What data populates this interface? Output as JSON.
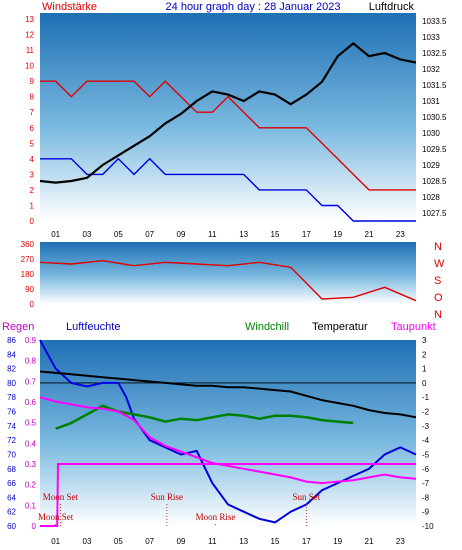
{
  "chart_data": [
    {
      "type": "line",
      "title": "24 hour graph day : 28 Januar 2023",
      "left_label": "Windstärke",
      "right_label": "Luftdruck",
      "x_ticks": [
        "01",
        "03",
        "05",
        "07",
        "09",
        "11",
        "13",
        "15",
        "17",
        "19",
        "21",
        "23"
      ],
      "y_left_ticks": [
        "0",
        "1",
        "2",
        "3",
        "4",
        "5",
        "6",
        "7",
        "8",
        "9",
        "10",
        "11",
        "12",
        "13"
      ],
      "y_right_ticks": [
        "1027.5",
        "1028",
        "1028.5",
        "1029",
        "1029.5",
        "1030",
        "1030.5",
        "1031",
        "1031.5",
        "1032",
        "1032.5",
        "1033",
        "1033.5"
      ],
      "ylim_left": [
        0,
        13
      ],
      "ylim_right": [
        1027.25,
        1033.75
      ],
      "series": [
        {
          "role": "wind-gust",
          "color": "#e00000",
          "hours": [
            0,
            1,
            2,
            3,
            4,
            5,
            6,
            7,
            8,
            9,
            10,
            11,
            12,
            13,
            14,
            15,
            16,
            17,
            18,
            19,
            20,
            21,
            22,
            23,
            24
          ],
          "values": [
            9,
            9,
            8,
            9,
            9,
            9,
            9,
            8,
            9,
            8,
            7,
            7,
            8,
            7,
            6,
            6,
            6,
            6,
            5,
            4,
            3,
            2,
            2,
            2,
            2
          ]
        },
        {
          "role": "wind-mean",
          "color": "#0000e0",
          "hours": [
            0,
            1,
            2,
            3,
            4,
            5,
            6,
            7,
            8,
            9,
            10,
            11,
            12,
            13,
            14,
            15,
            16,
            17,
            18,
            19,
            20,
            21,
            22,
            23,
            24
          ],
          "values": [
            4,
            4,
            4,
            3,
            3,
            4,
            3,
            4,
            3,
            3,
            3,
            3,
            3,
            3,
            2,
            2,
            2,
            2,
            1,
            1,
            0,
            0,
            0,
            0,
            0
          ]
        },
        {
          "role": "pressure",
          "color": "#000000",
          "hours": [
            0,
            1,
            2,
            3,
            4,
            5,
            6,
            7,
            8,
            9,
            10,
            11,
            12,
            13,
            14,
            15,
            16,
            17,
            18,
            19,
            20,
            21,
            22,
            23,
            24
          ],
          "values": [
            1028.5,
            1028.45,
            1028.5,
            1028.6,
            1029.0,
            1029.3,
            1029.6,
            1029.9,
            1030.3,
            1030.6,
            1031.0,
            1031.3,
            1031.2,
            1031.0,
            1031.3,
            1031.2,
            1030.9,
            1031.2,
            1031.6,
            1032.4,
            1032.8,
            1032.4,
            1032.5,
            1032.3,
            1032.2
          ]
        }
      ]
    },
    {
      "type": "line",
      "direction_labels": [
        "N",
        "W",
        "S",
        "O",
        "N"
      ],
      "y_ticks": [
        "0",
        "90",
        "180",
        "270",
        "360"
      ],
      "ylim": [
        0,
        360
      ],
      "series": [
        {
          "role": "wind-direction",
          "color": "#e00000",
          "hours": [
            0,
            2,
            4,
            6,
            8,
            10,
            12,
            14,
            16,
            18,
            20,
            22,
            24
          ],
          "values": [
            250,
            240,
            260,
            230,
            250,
            240,
            230,
            250,
            220,
            30,
            40,
            100,
            20
          ]
        }
      ]
    },
    {
      "type": "line",
      "labels": {
        "regen": "Regen",
        "luftfeuchte": "Luftfeuchte",
        "windchill": "Windchill",
        "temperatur": "Temperatur",
        "taupunkt": "Taupunkt"
      },
      "y_left_ticks": [
        "60",
        "62",
        "64",
        "66",
        "68",
        "70",
        "72",
        "74",
        "76",
        "78",
        "80",
        "82",
        "84",
        "86"
      ],
      "y_rain_ticks": [
        "0",
        "0.1",
        "0.2",
        "0.3",
        "0.4",
        "0.5",
        "0.6",
        "0.7",
        "0.8",
        "0.9"
      ],
      "y_right_ticks": [
        "3",
        "2",
        "1",
        "0",
        "-1",
        "-2",
        "-3",
        "-4",
        "-5",
        "-6",
        "-7",
        "-8",
        "-9",
        "-10"
      ],
      "ylim_humidity": [
        60,
        86
      ],
      "ylim_rain": [
        0,
        0.9
      ],
      "ylim_temp": [
        -10,
        3
      ],
      "series": [
        {
          "role": "humidity",
          "color": "#0000e0",
          "hours": [
            0,
            0.5,
            1,
            2,
            3,
            4,
            5,
            5.5,
            6,
            7,
            8,
            9,
            10,
            11,
            12,
            13,
            14,
            15,
            16,
            17,
            18,
            19,
            20,
            21,
            22,
            23,
            24
          ],
          "values": [
            86,
            84,
            82,
            80,
            79.5,
            80,
            80,
            78,
            75,
            72,
            71,
            70,
            70.5,
            66,
            63,
            62,
            61,
            60.5,
            62,
            63,
            65,
            66,
            67,
            68,
            70,
            71,
            70
          ]
        },
        {
          "role": "temperature",
          "color": "#000000",
          "hours": [
            0,
            1,
            2,
            3,
            4,
            5,
            6,
            7,
            8,
            9,
            10,
            11,
            12,
            13,
            14,
            15,
            16,
            17,
            18,
            19,
            20,
            21,
            22,
            23,
            24
          ],
          "values": [
            0.8,
            0.7,
            0.6,
            0.5,
            0.4,
            0.3,
            0.2,
            0.1,
            0.0,
            -0.1,
            -0.2,
            -0.2,
            -0.3,
            -0.3,
            -0.4,
            -0.5,
            -0.6,
            -0.9,
            -1.2,
            -1.4,
            -1.6,
            -1.9,
            -2.1,
            -2.2,
            -2.4
          ]
        },
        {
          "role": "windchill",
          "color": "#008000",
          "hours": [
            1,
            2,
            3,
            4,
            5,
            6,
            7,
            8,
            9,
            10,
            11,
            12,
            13,
            14,
            15,
            16,
            17,
            18,
            19,
            20
          ],
          "values": [
            -3.2,
            -2.8,
            -2.2,
            -1.6,
            -2.0,
            -2.2,
            -2.4,
            -2.7,
            -2.5,
            -2.6,
            -2.4,
            -2.2,
            -2.3,
            -2.5,
            -2.3,
            -2.3,
            -2.4,
            -2.6,
            -2.7,
            -2.8
          ]
        },
        {
          "role": "dewpoint",
          "color": "#ff00ff",
          "hours": [
            0,
            1,
            2,
            3,
            4,
            5,
            6,
            7,
            8,
            9,
            10,
            11,
            12,
            13,
            14,
            15,
            16,
            17,
            18,
            19,
            20,
            21,
            22,
            23,
            24
          ],
          "values": [
            -1.0,
            -1.3,
            -1.5,
            -1.7,
            -1.8,
            -2.0,
            -2.6,
            -3.8,
            -4.4,
            -4.8,
            -5.2,
            -5.6,
            -5.8,
            -6.0,
            -6.2,
            -6.4,
            -6.6,
            -6.9,
            -7.0,
            -6.9,
            -6.8,
            -6.6,
            -6.4,
            -6.6,
            -6.7
          ]
        },
        {
          "role": "rain",
          "color": "#ff00ff",
          "hours": [
            0,
            1.1,
            1.15,
            24
          ],
          "values": [
            0,
            0,
            0.3,
            0.3
          ]
        }
      ],
      "annotations": [
        {
          "text": "Moon Set",
          "hour": 1.3,
          "row": "upper"
        },
        {
          "text": "Moon Set",
          "hour": 1.0,
          "row": "lower"
        },
        {
          "text": "Sun Rise",
          "hour": 8.1,
          "row": "upper"
        },
        {
          "text": "Moon Rise",
          "hour": 11.2,
          "row": "lower"
        },
        {
          "text": "Sun Set",
          "hour": 17.0,
          "row": "upper"
        }
      ]
    }
  ]
}
